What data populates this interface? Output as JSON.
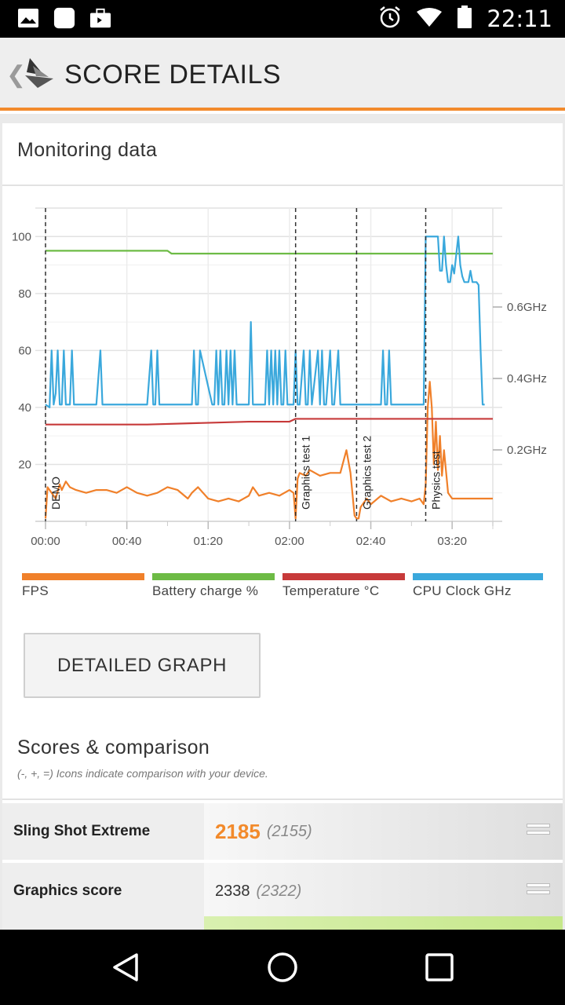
{
  "status_bar": {
    "time": "22:11",
    "left_icons": [
      "image-icon",
      "app-icon",
      "briefcase-icon"
    ],
    "right_icons": [
      "alarm-icon",
      "wifi-icon",
      "battery-icon"
    ]
  },
  "header": {
    "title": "SCORE DETAILS"
  },
  "monitoring": {
    "title": "Monitoring data",
    "detailed_button": "DETAILED GRAPH"
  },
  "chart_data": {
    "type": "line",
    "x_unit": "time (mm:ss)",
    "x_ticks": [
      "00:00",
      "00:40",
      "01:20",
      "02:00",
      "02:40",
      "03:20"
    ],
    "xlim": [
      0,
      220
    ],
    "left_axis": {
      "ticks": [
        "100",
        "80",
        "60",
        "40",
        "20"
      ],
      "ylim": [
        0,
        110
      ]
    },
    "right_axis": {
      "ticks": [
        "0.6GHz",
        "0.4GHz",
        "0.2GHz"
      ]
    },
    "grid": true,
    "markers": [
      {
        "label": "DEMO",
        "x": 0
      },
      {
        "label": "Graphics test 1",
        "x": 123
      },
      {
        "label": "Graphics test 2",
        "x": 153
      },
      {
        "label": "Physics test",
        "x": 187
      }
    ],
    "series": [
      {
        "name": "FPS",
        "color": "#f0802a",
        "x": [
          0,
          1,
          2,
          3,
          5,
          7,
          8,
          10,
          12,
          15,
          20,
          25,
          30,
          35,
          40,
          45,
          50,
          55,
          60,
          65,
          70,
          72,
          75,
          80,
          85,
          90,
          95,
          100,
          102,
          105,
          110,
          115,
          120,
          122,
          123,
          124,
          125,
          128,
          130,
          135,
          140,
          145,
          148,
          150,
          152,
          153,
          154,
          155,
          158,
          160,
          165,
          170,
          175,
          180,
          184,
          186,
          187,
          188,
          189,
          190,
          191,
          192,
          193,
          194,
          195,
          196,
          198,
          200,
          205,
          210,
          215,
          220
        ],
        "y": [
          1,
          12,
          11,
          10,
          8,
          13,
          11,
          14,
          12,
          11,
          10,
          11,
          11,
          10,
          12,
          10,
          9,
          10,
          12,
          11,
          8,
          10,
          12,
          8,
          7,
          8,
          7,
          9,
          12,
          9,
          10,
          9,
          11,
          10,
          1,
          15,
          17,
          16,
          18,
          16,
          17,
          17,
          25,
          17,
          2,
          1,
          1,
          5,
          8,
          6,
          9,
          7,
          8,
          7,
          8,
          6,
          13,
          40,
          49,
          40,
          20,
          35,
          18,
          30,
          16,
          25,
          10,
          8,
          8,
          8,
          8,
          8
        ]
      },
      {
        "name": "Battery charge %",
        "color": "#6dbb45",
        "x": [
          0,
          60,
          62,
          220
        ],
        "y": [
          95,
          95,
          94,
          94
        ]
      },
      {
        "name": "Temperature °C",
        "color": "#c73a3a",
        "x": [
          0,
          50,
          100,
          120,
          123,
          150,
          180,
          220
        ],
        "y": [
          34,
          34,
          35,
          35,
          36,
          36,
          36,
          36
        ]
      },
      {
        "name": "CPU Clock GHz",
        "color": "#3aa8dc",
        "x": [
          0,
          2,
          3,
          4,
          5,
          6,
          7,
          8,
          9,
          10,
          12,
          13,
          14,
          25,
          27,
          28,
          50,
          52,
          53,
          54,
          55,
          56,
          72,
          73,
          74,
          75,
          76,
          82,
          83,
          84,
          85,
          86,
          87,
          88,
          89,
          90,
          91,
          92,
          93,
          94,
          100,
          101,
          102,
          108,
          109,
          110,
          111,
          112,
          113,
          114,
          115,
          116,
          117,
          118,
          119,
          120,
          121,
          122,
          123,
          124,
          125,
          127,
          128,
          129,
          130,
          131,
          134,
          135,
          136,
          137,
          138,
          140,
          141,
          142,
          144,
          145,
          146,
          147,
          148,
          150,
          152,
          153,
          155,
          158,
          165,
          166,
          167,
          168,
          169,
          170,
          171,
          172,
          186,
          187,
          188,
          193,
          194,
          195,
          196,
          197,
          198,
          199,
          200,
          201,
          203,
          204,
          205,
          206,
          208,
          209,
          210,
          211,
          212,
          213,
          214,
          215,
          216
        ],
        "y": [
          41,
          40,
          60,
          41,
          45,
          60,
          41,
          41,
          60,
          41,
          41,
          60,
          41,
          41,
          60,
          41,
          41,
          60,
          41,
          41,
          60,
          41,
          41,
          60,
          41,
          41,
          60,
          41,
          41,
          60,
          41,
          60,
          41,
          41,
          60,
          41,
          60,
          41,
          60,
          41,
          41,
          70,
          41,
          41,
          60,
          41,
          60,
          41,
          60,
          41,
          60,
          41,
          41,
          60,
          41,
          41,
          41,
          41,
          60,
          41,
          41,
          60,
          41,
          41,
          60,
          41,
          60,
          41,
          60,
          41,
          41,
          60,
          41,
          41,
          60,
          41,
          41,
          41,
          41,
          41,
          41,
          41,
          41,
          41,
          41,
          60,
          41,
          41,
          60,
          41,
          41,
          41,
          41,
          100,
          100,
          100,
          88,
          88,
          100,
          90,
          84,
          84,
          90,
          87,
          100,
          90,
          86,
          84,
          84,
          88,
          84,
          84,
          84,
          83,
          60,
          41,
          41
        ]
      }
    ]
  },
  "legend": [
    {
      "label": "FPS",
      "color": "#f0802a"
    },
    {
      "label": "Battery charge %",
      "color": "#6dbb45"
    },
    {
      "label": "Temperature °C",
      "color": "#c73a3a"
    },
    {
      "label": "CPU Clock GHz",
      "color": "#3aa8dc"
    }
  ],
  "scores": {
    "title": "Scores & comparison",
    "hint": "(-, +, =) Icons indicate comparison with your device.",
    "rows": [
      {
        "name": "Sling Shot Extreme",
        "value": "2185",
        "ref": "(2155)",
        "icon": "equal-icon"
      },
      {
        "name": "Graphics score",
        "value": "2338",
        "ref": "(2322)",
        "icon": "equal-icon"
      }
    ]
  },
  "nav": {
    "icons": [
      "back-icon",
      "home-icon",
      "recents-icon"
    ]
  }
}
